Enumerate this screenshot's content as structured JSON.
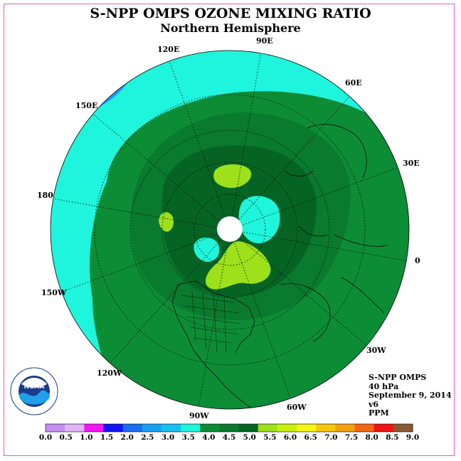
{
  "title": "S-NPP OMPS OZONE MIXING RATIO",
  "subtitle": "Northern Hemisphere",
  "longitude_labels": [
    "90E",
    "60E",
    "30E",
    "0",
    "30W",
    "60W",
    "90W",
    "120W",
    "150W",
    "180",
    "150E",
    "120E"
  ],
  "info": {
    "instrument": "S-NPP OMPS",
    "pressure": "40 hPa",
    "date": "September 9, 2014",
    "version": "v6",
    "units": "PPM"
  },
  "logo": {
    "text": "NOAA",
    "ring_text": "NATIONAL OCEANIC AND ATMOSPHERIC ADMINISTRATION · U.S. DEPARTMENT OF COMMERCE"
  },
  "colorbar": {
    "ticks": [
      "0.0",
      "0.5",
      "1.0",
      "1.5",
      "2.0",
      "2.5",
      "3.0",
      "3.5",
      "4.0",
      "4.5",
      "5.0",
      "5.5",
      "6.0",
      "6.5",
      "7.0",
      "7.5",
      "8.0",
      "8.5",
      "9.0"
    ],
    "colors": [
      "#c78ff0",
      "#dfb6f3",
      "#f416f0",
      "#1414f4",
      "#1a6ef0",
      "#1aa0f2",
      "#1ac0f2",
      "#1ef5dc",
      "#0d8c36",
      "#0a7a2e",
      "#056424",
      "#9ee01a",
      "#c8f00e",
      "#f5f516",
      "#f5c80e",
      "#f5a00e",
      "#f56414",
      "#f01414",
      "#8c5a32"
    ]
  },
  "colors": {
    "low_band": "#1ef5dc",
    "mid_band": "#0d8c36",
    "ring_band": "#0a7a2e",
    "core_band": "#056424",
    "high_band": "#9ee01a",
    "pole_mask": "#ffffff",
    "frame": "#e05bd6"
  }
}
